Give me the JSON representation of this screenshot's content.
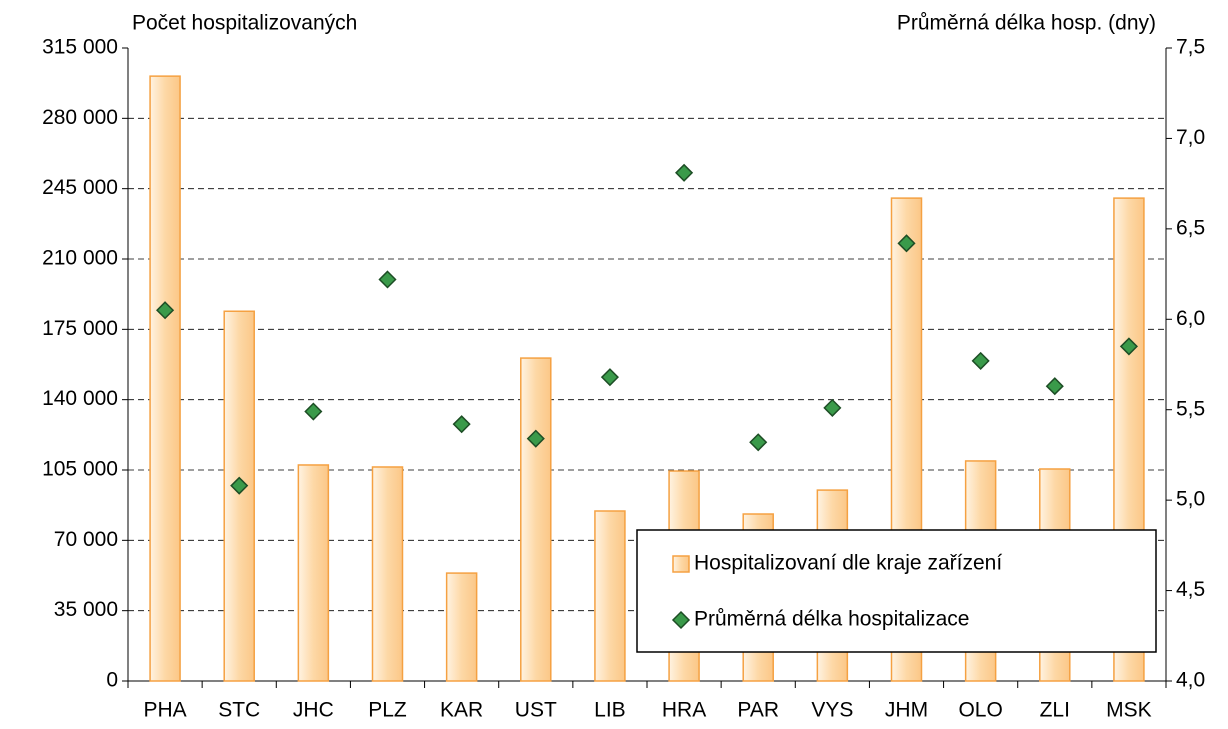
{
  "chart_data": {
    "type": "bar",
    "y_label": "Počet hospitalizovaných",
    "y2_label": "Průměrná délka hosp. (dny)",
    "categories": [
      "PHA",
      "STC",
      "JHC",
      "PLZ",
      "KAR",
      "UST",
      "LIB",
      "HRA",
      "PAR",
      "VYS",
      "JHM",
      "OLO",
      "ZLI",
      "MSK"
    ],
    "series": [
      {
        "name": "Hospitalizovaní dle kraje zařízení",
        "type": "bar",
        "color": "#fdd8a6",
        "values": [
          301000,
          184000,
          107500,
          106500,
          53700,
          160700,
          84600,
          104500,
          83100,
          95000,
          240300,
          109500,
          105500,
          240300
        ]
      },
      {
        "name": "Průměrná délka hospitalizace",
        "type": "scatter",
        "axis": "y2",
        "color": "#3a9a4a",
        "values": [
          6.05,
          5.08,
          5.49,
          6.22,
          5.42,
          5.34,
          5.68,
          6.81,
          5.32,
          5.51,
          6.42,
          5.77,
          5.63,
          5.85
        ]
      }
    ],
    "ylim": [
      0,
      315000
    ],
    "yticks": [
      0,
      {
        "value": 35000,
        "label": "35 000"
      },
      {
        "value": 70000,
        "label": "70 000"
      },
      {
        "value": 105000,
        "label": "105 000"
      },
      {
        "value": 140000,
        "label": "140 000"
      },
      {
        "value": 175000,
        "label": "175 000"
      },
      {
        "value": 210000,
        "label": "210 000"
      },
      {
        "value": 245000,
        "label": "245 000"
      },
      {
        "value": 280000,
        "label": "280 000"
      },
      {
        "value": 315000,
        "label": "315 000"
      }
    ],
    "y2lim": [
      4.0,
      7.5
    ],
    "y2ticks": [
      {
        "value": 4.0,
        "label": "4,0"
      },
      {
        "value": 4.5,
        "label": "4,5"
      },
      {
        "value": 5.0,
        "label": "5,0"
      },
      {
        "value": 5.5,
        "label": "5,5"
      },
      {
        "value": 6.0,
        "label": "6,0"
      },
      {
        "value": 6.5,
        "label": "6,5"
      },
      {
        "value": 7.0,
        "label": "7,0"
      },
      {
        "value": 7.5,
        "label": "7,5"
      }
    ],
    "grid": true
  }
}
